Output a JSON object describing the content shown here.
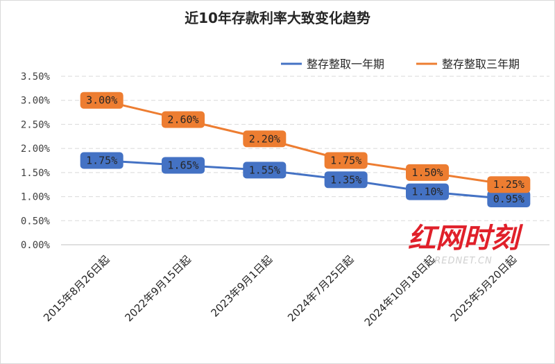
{
  "chart_data": {
    "type": "line",
    "title": "近10年存款利率大致变化趋势",
    "categories": [
      "2015年8月26日起",
      "2022年9月15日起",
      "2023年9月1日起",
      "2024年7月25日起",
      "2024年10月18日起",
      "2025年5月20日起"
    ],
    "y_ticks": [
      "0.00%",
      "0.50%",
      "1.00%",
      "1.50%",
      "2.00%",
      "2.50%",
      "3.00%",
      "3.50%"
    ],
    "ylim": [
      0,
      3.5
    ],
    "grid": true,
    "legend_position": "top-right",
    "series": [
      {
        "name": "整存整取一年期",
        "color": "#4472c4",
        "values": [
          1.75,
          1.65,
          1.55,
          1.35,
          1.1,
          0.95
        ],
        "labels": [
          "1.75%",
          "1.65%",
          "1.55%",
          "1.35%",
          "1.10%",
          "0.95%"
        ]
      },
      {
        "name": "整存整取三年期",
        "color": "#ed7d31",
        "values": [
          3.0,
          2.6,
          2.2,
          1.75,
          1.5,
          1.25
        ],
        "labels": [
          "3.00%",
          "2.60%",
          "2.20%",
          "1.75%",
          "1.50%",
          "1.25%"
        ]
      }
    ]
  },
  "watermark": {
    "main": "红网时刻",
    "sub": "REDNET.CN"
  }
}
